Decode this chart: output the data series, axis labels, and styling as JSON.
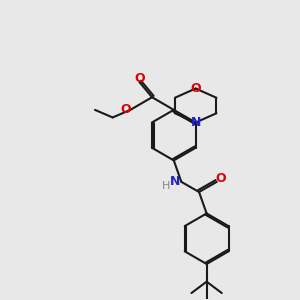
{
  "background_color": "#e8e8e8",
  "bond_color": "#1a1a1a",
  "oxygen_color": "#dd0000",
  "nitrogen_color": "#2222cc",
  "h_color": "#888888",
  "lw": 1.5,
  "dbg": 0.055,
  "xlim": [
    0,
    10
  ],
  "ylim": [
    0,
    10
  ]
}
